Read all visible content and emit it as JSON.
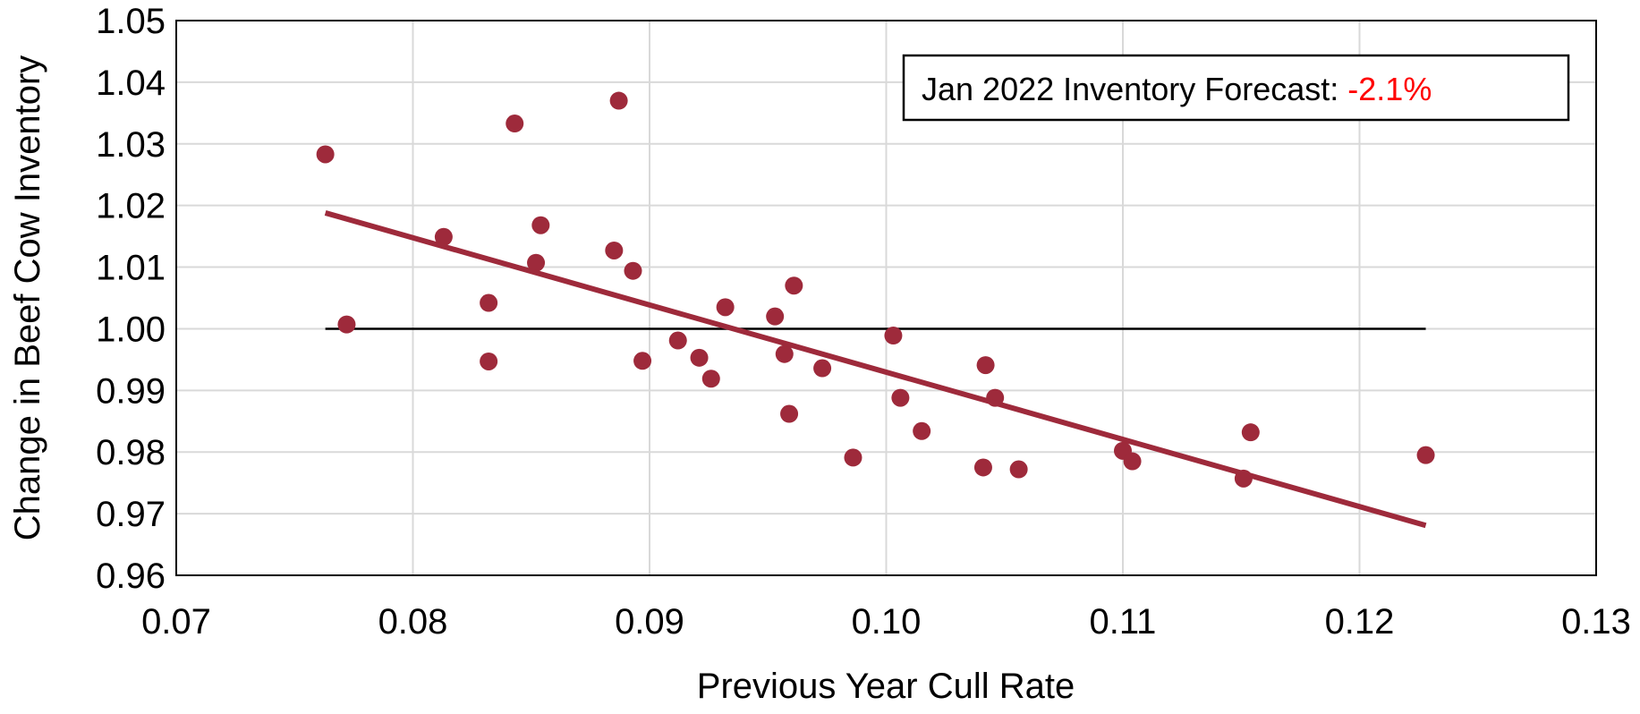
{
  "chart_data": {
    "type": "scatter",
    "x_label": "Previous Year Cull Rate",
    "y_label": "Change in Beef Cow Inventory",
    "color": "#9e2a3b",
    "x": [
      0.0763,
      0.0772,
      0.0813,
      0.0832,
      0.0832,
      0.0843,
      0.0852,
      0.0854,
      0.0885,
      0.0887,
      0.0893,
      0.0897,
      0.0912,
      0.0921,
      0.0926,
      0.0932,
      0.0953,
      0.0957,
      0.0959,
      0.0961,
      0.0973,
      0.0986,
      0.1003,
      0.1006,
      0.1015,
      0.1041,
      0.1042,
      0.1046,
      0.1056,
      0.11,
      0.1104,
      0.1151,
      0.1154,
      0.1228
    ],
    "values": [
      1.0283,
      1.0007,
      1.0149,
      1.0042,
      0.9947,
      1.0333,
      1.0107,
      1.0168,
      1.0127,
      1.037,
      1.0094,
      0.9948,
      0.9981,
      0.9953,
      0.9919,
      1.0035,
      1.002,
      0.9959,
      0.9862,
      1.007,
      0.9936,
      0.9791,
      0.9989,
      0.9888,
      0.9834,
      0.9775,
      0.9941,
      0.9888,
      0.9772,
      0.9802,
      0.9785,
      0.9757,
      0.9832,
      0.9795
    ],
    "trendline": {
      "x": [
        0.0763,
        0.1228
      ],
      "values": [
        1.0188,
        0.9681
      ],
      "color": "#9e2a3b"
    },
    "reference_line": {
      "x": [
        0.0763,
        0.1228
      ],
      "values": [
        1.0,
        1.0
      ],
      "color": "#000000"
    },
    "annotation": {
      "text": "Jan 2022 Inventory Forecast:",
      "highlight": "-2.1%",
      "highlight_color": "#ff0000"
    },
    "xlim": [
      0.07,
      0.13
    ],
    "xticks": [
      0.07,
      0.08,
      0.09,
      {
        "value": 0.1,
        "label": "0.10"
      },
      0.11,
      0.12,
      0.13
    ],
    "ylim": [
      0.96,
      1.05
    ],
    "yticks": [
      0.96,
      0.97,
      0.98,
      0.99,
      {
        "value": 1.0,
        "label": "1.00"
      },
      1.01,
      1.02,
      1.03,
      1.04,
      1.05
    ],
    "grid": true
  }
}
